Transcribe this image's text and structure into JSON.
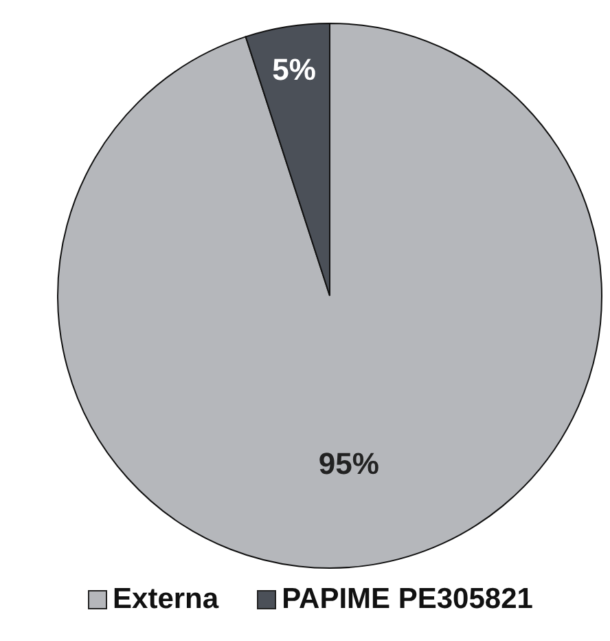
{
  "chart_data": {
    "type": "pie",
    "categories": [
      "Externa",
      "PAPIME PE305821"
    ],
    "values": [
      95,
      5
    ],
    "value_labels": [
      "95%",
      "5%"
    ],
    "colors": [
      "#b5b7bb",
      "#4b5058"
    ],
    "legend": "bottom"
  }
}
